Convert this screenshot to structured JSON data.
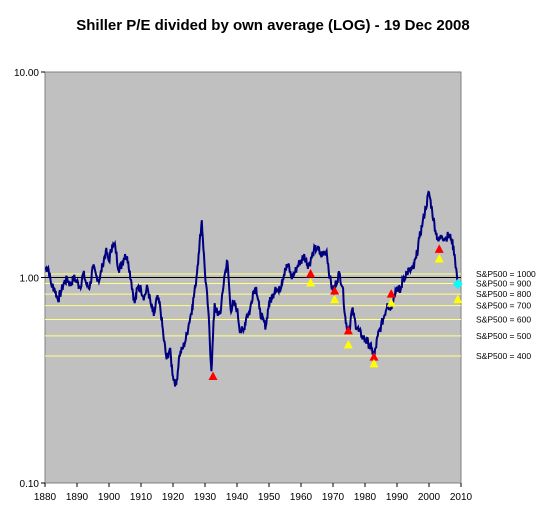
{
  "chart_data": {
    "type": "line",
    "title": "Shiller P/E divided by own average (LOG) - 19 Dec 2008",
    "xlabel": "",
    "ylabel": "",
    "x_range": [
      1880,
      2010
    ],
    "x_ticks": [
      "1880",
      "1890",
      "1900",
      "1910",
      "1920",
      "1930",
      "1940",
      "1950",
      "1960",
      "1970",
      "1980",
      "1990",
      "2000",
      "2010"
    ],
    "x_tick_values": [
      1880,
      1890,
      1900,
      1910,
      1920,
      1930,
      1940,
      1950,
      1960,
      1970,
      1980,
      1990,
      2000,
      2010
    ],
    "y_scale": "log",
    "y_range": [
      0.1,
      10
    ],
    "y_ticks": [
      "0.10",
      "1.00",
      "10.00"
    ],
    "y_tick_values": [
      0.1,
      1,
      10
    ],
    "plot_background": "#c0c0c0",
    "line_color": "#000080",
    "series": [
      {
        "x": [
          1880,
          1881,
          1882,
          1883,
          1884,
          1885,
          1886,
          1887,
          1888,
          1889,
          1890,
          1891,
          1892,
          1893,
          1894,
          1895,
          1896,
          1897,
          1898,
          1899,
          1900,
          1901,
          1902,
          1903,
          1904,
          1905,
          1906,
          1907,
          1908,
          1909,
          1910,
          1911,
          1912,
          1913,
          1914,
          1915,
          1916,
          1917,
          1918,
          1919,
          1920,
          1921,
          1922,
          1923,
          1924,
          1925,
          1926,
          1927,
          1928,
          1929,
          1930,
          1931,
          1932,
          1933,
          1934,
          1935,
          1936,
          1937,
          1938,
          1939,
          1940,
          1941,
          1942,
          1943,
          1944,
          1945,
          1946,
          1947,
          1948,
          1949,
          1950,
          1951,
          1952,
          1953,
          1954,
          1955,
          1956,
          1957,
          1958,
          1959,
          1960,
          1961,
          1962,
          1963,
          1964,
          1965,
          1966,
          1967,
          1968,
          1969,
          1970,
          1971,
          1972,
          1973,
          1974,
          1975,
          1976,
          1977,
          1978,
          1979,
          1980,
          1981,
          1982,
          1983,
          1984,
          1985,
          1986,
          1987,
          1988,
          1989,
          1990,
          1991,
          1992,
          1993,
          1994,
          1995,
          1996,
          1997,
          1998,
          1999,
          2000,
          2001,
          2002,
          2003,
          2004,
          2005,
          2006,
          2007,
          2008,
          2008.97
        ],
        "y": [
          1.1,
          1.12,
          0.92,
          0.88,
          0.78,
          0.85,
          0.95,
          0.98,
          0.92,
          1.0,
          0.95,
          0.9,
          1.05,
          0.92,
          0.9,
          1.12,
          1.02,
          0.97,
          1.15,
          1.35,
          1.2,
          1.45,
          1.4,
          1.1,
          1.15,
          1.3,
          1.2,
          0.95,
          0.75,
          0.9,
          0.88,
          0.8,
          0.9,
          0.75,
          0.65,
          0.8,
          0.72,
          0.52,
          0.4,
          0.45,
          0.33,
          0.3,
          0.42,
          0.45,
          0.5,
          0.6,
          0.72,
          0.9,
          1.3,
          1.9,
          1.05,
          0.7,
          0.35,
          0.75,
          0.65,
          0.7,
          1.0,
          1.2,
          0.7,
          0.75,
          0.7,
          0.55,
          0.55,
          0.65,
          0.68,
          0.85,
          0.9,
          0.7,
          0.62,
          0.58,
          0.75,
          0.8,
          0.9,
          0.85,
          0.95,
          1.1,
          1.15,
          1.0,
          1.05,
          1.15,
          1.2,
          1.3,
          1.15,
          1.2,
          1.35,
          1.4,
          1.3,
          1.3,
          1.35,
          1.0,
          0.85,
          0.95,
          1.05,
          0.9,
          0.6,
          0.55,
          0.7,
          0.6,
          0.55,
          0.52,
          0.5,
          0.48,
          0.45,
          0.42,
          0.52,
          0.58,
          0.65,
          0.75,
          0.7,
          0.82,
          0.9,
          0.85,
          1.0,
          1.05,
          1.08,
          1.1,
          1.25,
          1.55,
          1.85,
          2.2,
          2.6,
          2.1,
          1.7,
          1.5,
          1.6,
          1.55,
          1.6,
          1.55,
          1.3,
          0.93
        ]
      }
    ],
    "markers": {
      "red": [
        {
          "x": 1932.5,
          "y": 0.33
        },
        {
          "x": 1963,
          "y": 1.04
        },
        {
          "x": 1970.5,
          "y": 0.86
        },
        {
          "x": 1974.8,
          "y": 0.55
        },
        {
          "x": 1982.8,
          "y": 0.41
        },
        {
          "x": 1988.2,
          "y": 0.83
        },
        {
          "x": 2003.2,
          "y": 1.37
        }
      ],
      "yellow": [
        {
          "x": 1963,
          "y": 0.94
        },
        {
          "x": 1970.5,
          "y": 0.78
        },
        {
          "x": 1974.8,
          "y": 0.47
        },
        {
          "x": 1982.8,
          "y": 0.38
        },
        {
          "x": 1988.2,
          "y": 0.75
        },
        {
          "x": 2003.2,
          "y": 1.23
        },
        {
          "x": 2009,
          "y": 0.78
        }
      ],
      "cyan": [
        {
          "x": 2009,
          "y": 0.93
        }
      ],
      "colors": {
        "red": "#ff0000",
        "yellow": "#ffff00",
        "cyan": "#00ffff"
      }
    },
    "reference_lines": {
      "labels": [
        "S&P500 = 1000",
        "S&P500 = 900",
        "S&P500 = 800",
        "S&P500 = 700",
        "S&P500 = 600",
        "S&P500 = 500",
        "S&P500 = 400"
      ],
      "values": [
        1.04,
        0.935,
        0.83,
        0.73,
        0.625,
        0.52,
        0.415
      ],
      "color": "#ffff80",
      "baseline_value": 1.0,
      "baseline_color": "#000000"
    }
  }
}
